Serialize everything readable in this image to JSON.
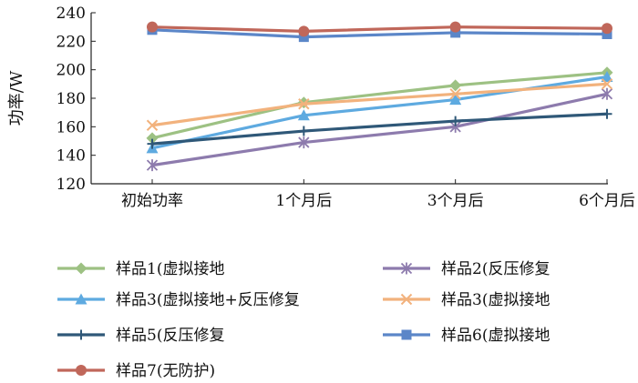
{
  "chart_data": {
    "type": "line",
    "categories": [
      "初始功率",
      "1个月后",
      "3个月后",
      "6个月后"
    ],
    "ylabel": "功率/W",
    "xlabel": "",
    "ylim": [
      120,
      240
    ],
    "yticks": [
      120,
      140,
      160,
      180,
      200,
      220,
      240
    ],
    "grid": false,
    "legend_position": "bottom",
    "series": [
      {
        "name": "样品1(虚拟接地",
        "color": "#9dc183",
        "marker": "diamond",
        "values": [
          152,
          177,
          189,
          198
        ]
      },
      {
        "name": "样品2(反压修复",
        "color": "#8d7bad",
        "marker": "asterisk",
        "values": [
          133,
          149,
          160,
          183
        ]
      },
      {
        "name": "样品3(虚拟接地+反压修复",
        "color": "#5eaae0",
        "marker": "triangle",
        "values": [
          145,
          168,
          179,
          195
        ]
      },
      {
        "name": "样品3(虚拟接地",
        "color": "#f2b27d",
        "marker": "x",
        "values": [
          161,
          176,
          183,
          190
        ]
      },
      {
        "name": "样品5(反压修复",
        "color": "#2f5878",
        "marker": "plus",
        "values": [
          148,
          157,
          164,
          169
        ]
      },
      {
        "name": "样品6(虚拟接地",
        "color": "#5b86c8",
        "marker": "square",
        "values": [
          228,
          223,
          226,
          225
        ]
      },
      {
        "name": "样品7(无防护)",
        "color": "#c0675a",
        "marker": "circle",
        "values": [
          230,
          227,
          230,
          229
        ]
      }
    ]
  }
}
